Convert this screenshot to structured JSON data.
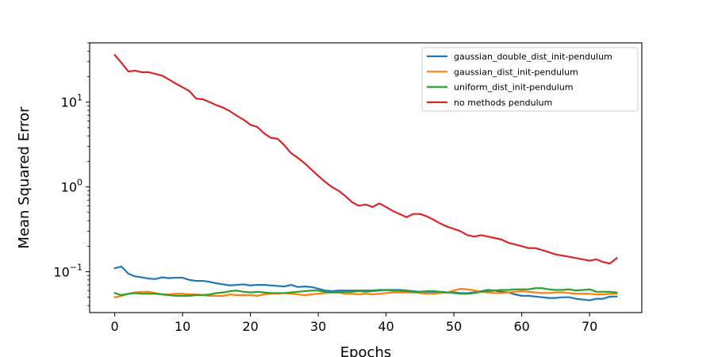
{
  "chart_data": {
    "type": "line",
    "xlabel": "Epochs",
    "ylabel": "Mean Squared Error",
    "yscale": "log",
    "xlim": [
      -3.7,
      77.7
    ],
    "ylim": [
      0.033,
      50
    ],
    "xticks": [
      0,
      10,
      20,
      30,
      40,
      50,
      60,
      70
    ],
    "yticks": [
      {
        "value": 10,
        "base": "10",
        "exp": "1"
      },
      {
        "value": 1,
        "base": "10",
        "exp": "0"
      },
      {
        "value": 0.1,
        "base": "10",
        "exp": "−1"
      }
    ],
    "legend_position": "top-right",
    "grid": false,
    "series": [
      {
        "name": "gaussian_double_dist_init-pendulum",
        "color": "#1f77b4",
        "y": [
          0.11,
          0.115,
          0.095,
          0.088,
          0.086,
          0.083,
          0.082,
          0.086,
          0.084,
          0.085,
          0.085,
          0.08,
          0.078,
          0.078,
          0.076,
          0.073,
          0.071,
          0.069,
          0.07,
          0.071,
          0.069,
          0.07,
          0.07,
          0.069,
          0.068,
          0.067,
          0.07,
          0.066,
          0.067,
          0.066,
          0.063,
          0.06,
          0.059,
          0.06,
          0.06,
          0.06,
          0.06,
          0.06,
          0.06,
          0.061,
          0.061,
          0.061,
          0.061,
          0.06,
          0.059,
          0.058,
          0.058,
          0.058,
          0.058,
          0.057,
          0.057,
          0.056,
          0.056,
          0.057,
          0.059,
          0.061,
          0.06,
          0.058,
          0.057,
          0.054,
          0.052,
          0.052,
          0.051,
          0.05,
          0.049,
          0.049,
          0.05,
          0.05,
          0.048,
          0.047,
          0.046,
          0.048,
          0.048,
          0.051,
          0.051
        ]
      },
      {
        "name": "gaussian_dist_init-pendulum",
        "color": "#ff7f0e",
        "y": [
          0.05,
          0.052,
          0.055,
          0.057,
          0.058,
          0.058,
          0.056,
          0.054,
          0.054,
          0.055,
          0.055,
          0.054,
          0.054,
          0.053,
          0.052,
          0.052,
          0.052,
          0.054,
          0.053,
          0.053,
          0.053,
          0.052,
          0.054,
          0.055,
          0.055,
          0.056,
          0.055,
          0.054,
          0.053,
          0.054,
          0.055,
          0.056,
          0.057,
          0.057,
          0.055,
          0.055,
          0.054,
          0.055,
          0.054,
          0.055,
          0.056,
          0.057,
          0.057,
          0.057,
          0.057,
          0.056,
          0.055,
          0.055,
          0.056,
          0.057,
          0.06,
          0.063,
          0.062,
          0.06,
          0.058,
          0.057,
          0.056,
          0.056,
          0.057,
          0.058,
          0.059,
          0.058,
          0.057,
          0.056,
          0.056,
          0.057,
          0.057,
          0.056,
          0.055,
          0.055,
          0.055,
          0.054,
          0.054,
          0.055,
          0.055
        ]
      },
      {
        "name": "uniform_dist_init-pendulum",
        "color": "#2ca02c",
        "y": [
          0.056,
          0.053,
          0.055,
          0.056,
          0.055,
          0.055,
          0.055,
          0.054,
          0.053,
          0.052,
          0.052,
          0.052,
          0.053,
          0.053,
          0.054,
          0.056,
          0.057,
          0.059,
          0.06,
          0.058,
          0.057,
          0.058,
          0.057,
          0.056,
          0.056,
          0.056,
          0.057,
          0.058,
          0.059,
          0.06,
          0.06,
          0.058,
          0.057,
          0.057,
          0.058,
          0.058,
          0.059,
          0.058,
          0.059,
          0.06,
          0.061,
          0.06,
          0.06,
          0.059,
          0.058,
          0.058,
          0.059,
          0.059,
          0.058,
          0.057,
          0.056,
          0.055,
          0.055,
          0.056,
          0.058,
          0.059,
          0.06,
          0.061,
          0.061,
          0.062,
          0.062,
          0.062,
          0.064,
          0.064,
          0.062,
          0.061,
          0.061,
          0.062,
          0.06,
          0.061,
          0.062,
          0.058,
          0.058,
          0.058,
          0.057
        ]
      },
      {
        "name": "no methods pendulum",
        "color": "#d62728",
        "y": [
          36,
          29,
          23,
          23.5,
          22.5,
          22.5,
          21.5,
          20.5,
          18.5,
          16.5,
          15,
          13.5,
          11,
          10.8,
          10,
          9.2,
          8.6,
          7.8,
          6.9,
          6.2,
          5.4,
          5.1,
          4.3,
          3.8,
          3.7,
          3.1,
          2.5,
          2.2,
          1.9,
          1.6,
          1.35,
          1.15,
          1.0,
          0.9,
          0.78,
          0.66,
          0.6,
          0.62,
          0.58,
          0.64,
          0.58,
          0.52,
          0.48,
          0.44,
          0.48,
          0.48,
          0.45,
          0.41,
          0.37,
          0.34,
          0.32,
          0.3,
          0.27,
          0.26,
          0.27,
          0.26,
          0.25,
          0.24,
          0.22,
          0.21,
          0.2,
          0.19,
          0.19,
          0.18,
          0.17,
          0.16,
          0.155,
          0.15,
          0.145,
          0.14,
          0.135,
          0.14,
          0.13,
          0.125,
          0.145
        ]
      }
    ]
  }
}
